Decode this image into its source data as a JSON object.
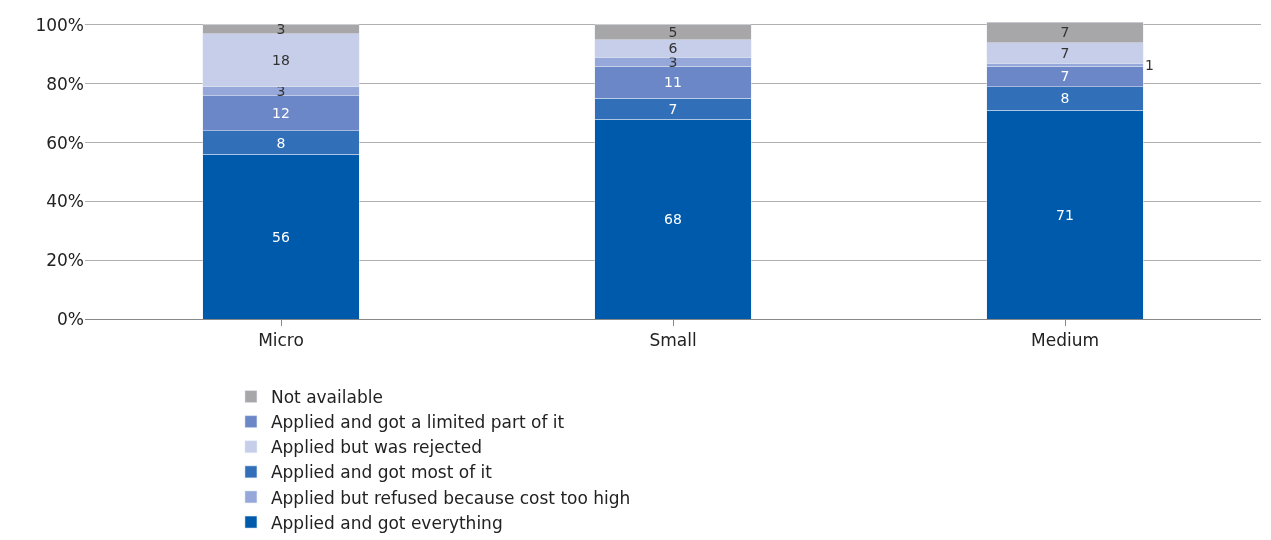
{
  "chart_data": {
    "type": "bar",
    "stacked": true,
    "categories": [
      "Micro",
      "Small",
      "Medium"
    ],
    "series": [
      {
        "name": "Applied and got everything",
        "color": "#005aab",
        "values": [
          56,
          68,
          71
        ]
      },
      {
        "name": "Applied and got most of it",
        "color": "#3170b8",
        "values": [
          8,
          7,
          8
        ]
      },
      {
        "name": "Applied and got a limited part of it",
        "color": "#6b87c7",
        "values": [
          12,
          11,
          7
        ]
      },
      {
        "name": "Applied but refused because cost too high",
        "color": "#95a8d9",
        "values": [
          3,
          3,
          1
        ]
      },
      {
        "name": "Applied but was rejected",
        "color": "#c6cee9",
        "values": [
          18,
          6,
          7
        ]
      },
      {
        "name": "Not available",
        "color": "#a7a7a9",
        "values": [
          3,
          5,
          7
        ]
      }
    ],
    "ylim": [
      0,
      101
    ],
    "yticks": [
      {
        "value": 0,
        "label": "0%"
      },
      {
        "value": 20,
        "label": "20%"
      },
      {
        "value": 40,
        "label": "40%"
      },
      {
        "value": 60,
        "label": "60%"
      },
      {
        "value": 80,
        "label": "80%"
      },
      {
        "value": 100,
        "label": "100%"
      }
    ],
    "grid": "y",
    "legend": "bottom",
    "data_labels": true
  }
}
